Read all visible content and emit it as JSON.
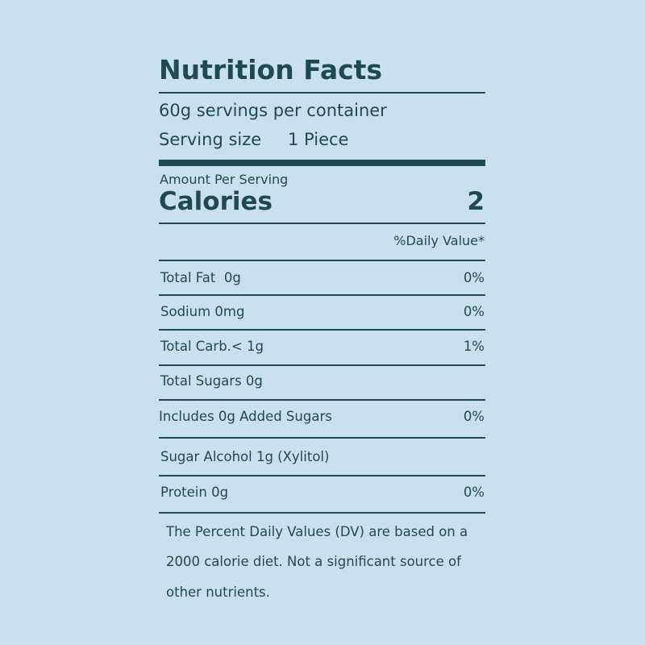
{
  "label": {
    "title": "Nutrition Facts",
    "servings_per_container": "60g servings per container",
    "serving_size": {
      "label": "Serving size",
      "value": "1 Piece"
    },
    "amount_per_serving": "Amount Per Serving",
    "calories": {
      "label": "Calories",
      "value": "2"
    },
    "daily_value_header": "%Daily Value*",
    "rows": [
      {
        "name": "Total Fat  0g",
        "dv": "0%"
      },
      {
        "name": "Sodium 0mg",
        "dv": "0%"
      },
      {
        "name": "Total Carb.< 1g",
        "dv": "1%"
      },
      {
        "name": "Total Sugars 0g"
      },
      {
        "name": "Includes 0g Added Sugars",
        "dv": "0%"
      },
      {
        "name": "Sugar Alcohol 1g (Xylitol)"
      },
      {
        "name": "Protein 0g",
        "dv": "0%"
      }
    ],
    "footnote": [
      "The Percent Daily Values (DV) are based on a",
      "2000 calorie diet. Not a significant source of",
      "other nutrients."
    ]
  }
}
